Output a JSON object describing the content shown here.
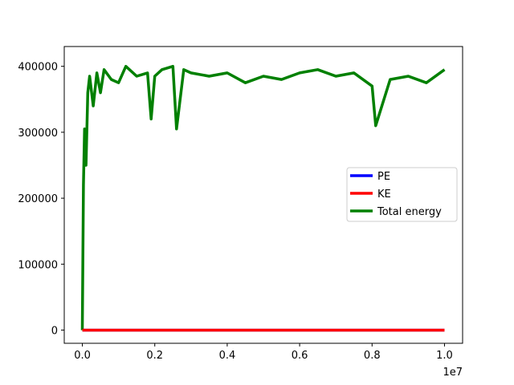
{
  "chart_data": {
    "type": "line",
    "title": "",
    "xlabel": "",
    "ylabel": "",
    "x_offset_label": "1e7",
    "xlim": [
      -0.05,
      1.05
    ],
    "ylim": [
      -20000,
      430000
    ],
    "x_ticks": [
      {
        "value": 0.0,
        "label": "0.0"
      },
      {
        "value": 0.2,
        "label": "0.2"
      },
      {
        "value": 0.4,
        "label": "0.4"
      },
      {
        "value": 0.6,
        "label": "0.6"
      },
      {
        "value": 0.8,
        "label": "0.8"
      },
      {
        "value": 1.0,
        "label": "1.0"
      }
    ],
    "y_ticks": [
      {
        "value": 0,
        "label": "0"
      },
      {
        "value": 100000,
        "label": "100000"
      },
      {
        "value": 200000,
        "label": "200000"
      },
      {
        "value": 300000,
        "label": "300000"
      },
      {
        "value": 400000,
        "label": "400000"
      }
    ],
    "grid": false,
    "legend_position": "center-right",
    "series": [
      {
        "name": "PE",
        "color": "#0000ff",
        "x": [
          0.0,
          1.0
        ],
        "y": [
          0,
          0
        ]
      },
      {
        "name": "KE",
        "color": "#ff0000",
        "x": [
          0.0,
          1.0
        ],
        "y": [
          0,
          0
        ]
      },
      {
        "name": "Total energy",
        "color": "#008000",
        "x": [
          0.0,
          0.003,
          0.006,
          0.01,
          0.015,
          0.02,
          0.03,
          0.04,
          0.05,
          0.06,
          0.08,
          0.1,
          0.12,
          0.15,
          0.18,
          0.19,
          0.2,
          0.22,
          0.25,
          0.26,
          0.28,
          0.3,
          0.35,
          0.4,
          0.45,
          0.5,
          0.55,
          0.6,
          0.65,
          0.7,
          0.75,
          0.8,
          0.81,
          0.85,
          0.9,
          0.95,
          1.0
        ],
        "y": [
          0,
          220000,
          305000,
          250000,
          360000,
          385000,
          340000,
          390000,
          360000,
          395000,
          380000,
          375000,
          400000,
          385000,
          390000,
          320000,
          385000,
          395000,
          400000,
          305000,
          395000,
          390000,
          385000,
          390000,
          375000,
          385000,
          380000,
          390000,
          395000,
          385000,
          390000,
          370000,
          310000,
          380000,
          385000,
          375000,
          395000
        ]
      }
    ]
  }
}
